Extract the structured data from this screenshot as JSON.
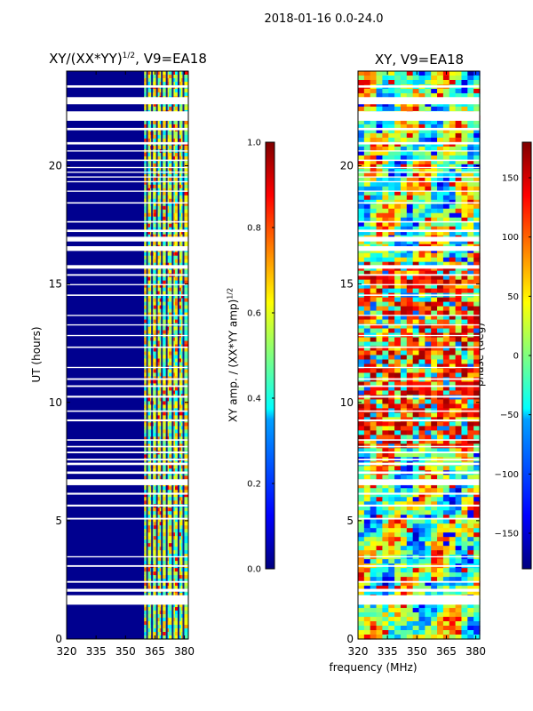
{
  "suptitle": "2018-01-16 0.0-24.0",
  "colors": {
    "jet": [
      "#00007f",
      "#0000ff",
      "#007fff",
      "#00ffff",
      "#7fff7f",
      "#ffff00",
      "#ff7f00",
      "#ff0000",
      "#7f0000"
    ]
  },
  "chart_data": [
    {
      "type": "heatmap",
      "title": "XY/(XX*YY)",
      "title_exponent": "1/2",
      "title_suffix": ", V9=EA18",
      "xlabel": "",
      "ylabel": "UT (hours)",
      "xlim": [
        320,
        382
      ],
      "ylim": [
        0,
        24
      ],
      "xticks": [
        "320",
        "335",
        "350",
        "365",
        "380"
      ],
      "xtick_values": [
        320,
        335,
        350,
        365,
        380
      ],
      "yticks": [
        "0",
        "5",
        "10",
        "15",
        "20"
      ],
      "ytick_values": [
        0,
        5,
        10,
        15,
        20
      ],
      "background_value": 0.05,
      "signal_band_mhz": [
        359.5,
        381.5
      ],
      "signal_channels_mhz": [
        361,
        363.5,
        366,
        368.5,
        371,
        374,
        377,
        379.5
      ],
      "colorbar": {
        "label": "XY amp. / (XX*YY amp)",
        "label_exponent": "1/2",
        "range": [
          0.0,
          1.0
        ],
        "ticks": [
          "0.0",
          "0.2",
          "0.4",
          "0.6",
          "0.8",
          "1.0"
        ],
        "tick_values": [
          0.0,
          0.2,
          0.4,
          0.6,
          0.8,
          1.0
        ]
      }
    },
    {
      "type": "heatmap",
      "title": "XY, V9=EA18",
      "xlabel": "frequency (MHz)",
      "ylabel": "",
      "xlim": [
        320,
        382
      ],
      "ylim": [
        0,
        24
      ],
      "xticks": [
        "320",
        "335",
        "350",
        "365",
        "380"
      ],
      "xtick_values": [
        320,
        335,
        350,
        365,
        380
      ],
      "yticks": [
        "0",
        "5",
        "10",
        "15",
        "20"
      ],
      "ytick_values": [
        0,
        5,
        10,
        15,
        20
      ],
      "noisy_ut_range": [
        8,
        16
      ],
      "colorbar": {
        "label": "phase (deg)",
        "range": [
          -180,
          180
        ],
        "ticks": [
          "−150",
          "−100",
          "−50",
          "0",
          "50",
          "100",
          "150"
        ],
        "tick_values": [
          -150,
          -100,
          -50,
          0,
          50,
          100,
          150
        ]
      }
    }
  ],
  "flagged_ut_ranges": [
    [
      1.45,
      1.85
    ],
    [
      2.0,
      2.12
    ],
    [
      2.38,
      2.45
    ],
    [
      3.05,
      3.12
    ],
    [
      3.45,
      3.5
    ],
    [
      5.05,
      5.12
    ],
    [
      5.6,
      5.68
    ],
    [
      6.1,
      6.18
    ],
    [
      6.5,
      6.75
    ],
    [
      6.98,
      7.08
    ],
    [
      7.35,
      7.45
    ],
    [
      7.55,
      7.62
    ],
    [
      7.85,
      7.92
    ],
    [
      8.1,
      8.16
    ],
    [
      8.38,
      8.44
    ],
    [
      9.2,
      9.28
    ],
    [
      9.6,
      9.66
    ],
    [
      10.2,
      10.28
    ],
    [
      10.65,
      10.72
    ],
    [
      10.95,
      11.02
    ],
    [
      11.45,
      11.5
    ],
    [
      12.3,
      12.36
    ],
    [
      12.8,
      12.85
    ],
    [
      13.25,
      13.3
    ],
    [
      13.65,
      13.7
    ],
    [
      14.5,
      14.56
    ],
    [
      14.95,
      15.0
    ],
    [
      15.35,
      15.42
    ],
    [
      15.65,
      15.8
    ],
    [
      16.4,
      16.6
    ],
    [
      16.8,
      17.0
    ],
    [
      17.2,
      17.3
    ],
    [
      17.6,
      17.66
    ],
    [
      18.4,
      18.46
    ],
    [
      18.9,
      18.95
    ],
    [
      19.3,
      19.35
    ],
    [
      19.5,
      19.55
    ],
    [
      19.7,
      19.75
    ],
    [
      19.9,
      19.95
    ],
    [
      20.2,
      20.26
    ],
    [
      20.6,
      20.65
    ],
    [
      20.9,
      21.0
    ],
    [
      21.5,
      21.6
    ],
    [
      21.9,
      22.3
    ],
    [
      22.6,
      22.9
    ],
    [
      23.3,
      23.4
    ]
  ]
}
